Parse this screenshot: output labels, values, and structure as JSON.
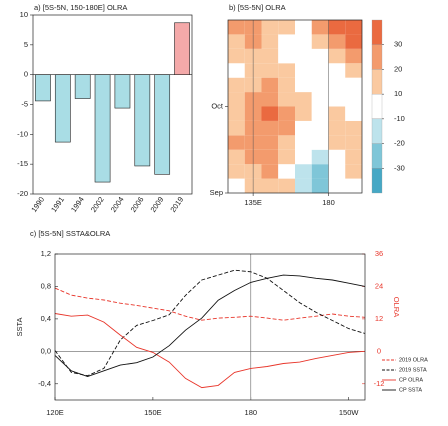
{
  "chart_data": [
    {
      "type": "bar",
      "title": "a) [5S-5N, 150-180E] OLRA",
      "categories": [
        "1990",
        "1991",
        "1994",
        "2002",
        "2004",
        "2006",
        "2009",
        "2019"
      ],
      "values": [
        -4.4,
        -11.3,
        -4,
        -18,
        -5.6,
        -15.3,
        -16.7,
        8.7
      ],
      "colors": [
        "#a9dde5",
        "#a9dde5",
        "#a9dde5",
        "#a9dde5",
        "#a9dde5",
        "#a9dde5",
        "#a9dde5",
        "#f4a9a9"
      ],
      "ylim": [
        -20,
        10
      ],
      "yticks": [
        -20,
        -15,
        -10,
        -5,
        0,
        5,
        10
      ]
    },
    {
      "type": "heatmap",
      "title": "b) [5S-5N] OLRA",
      "x": [
        125,
        135,
        145,
        155,
        165,
        175,
        185,
        195
      ],
      "y": [
        2.5,
        7.5,
        12.5,
        17.5,
        22.5,
        27.5,
        32.5,
        37.5,
        42.5,
        47.5,
        52.5,
        57.5
      ],
      "values": [
        [
          5,
          10,
          15,
          10,
          -20,
          -30,
          -10,
          5
        ],
        [
          10,
          15,
          20,
          5,
          -15,
          -25,
          -5,
          10
        ],
        [
          15,
          20,
          25,
          10,
          -10,
          -15,
          5,
          10
        ],
        [
          20,
          25,
          20,
          15,
          0,
          -10,
          10,
          15
        ],
        [
          15,
          20,
          25,
          20,
          5,
          -5,
          15,
          10
        ],
        [
          10,
          25,
          30,
          20,
          10,
          0,
          10,
          5
        ],
        [
          15,
          20,
          25,
          15,
          10,
          5,
          0,
          -5
        ],
        [
          10,
          15,
          20,
          10,
          5,
          0,
          -5,
          0
        ],
        [
          5,
          10,
          15,
          10,
          0,
          -10,
          0,
          10
        ],
        [
          10,
          15,
          10,
          5,
          -5,
          0,
          10,
          20
        ],
        [
          15,
          20,
          10,
          5,
          0,
          15,
          25,
          30
        ],
        [
          20,
          25,
          15,
          10,
          5,
          20,
          30,
          30
        ]
      ],
      "xlim": [
        120,
        200
      ],
      "xticks": [
        {
          "value": 135,
          "label": "135E"
        },
        180
      ],
      "ylim": [
        0,
        60
      ],
      "yticks": [
        {
          "value": 0,
          "label": "Sep"
        },
        {
          "value": 30,
          "label": "Oct"
        }
      ],
      "colorbar_ticks": [
        30,
        20,
        10,
        -10,
        -20,
        -30
      ],
      "colorbar_colors": [
        "#ea6a40",
        "#f39b6d",
        "#fac9a0",
        "#ffffff",
        "#bde3ec",
        "#7fc6d8",
        "#46a8c5"
      ]
    },
    {
      "type": "line",
      "title": "c) [5S-5N] SSTA&OLRA",
      "y_label": "SSTA",
      "y2_label": "OLRA",
      "x": [
        120,
        125,
        130,
        135,
        140,
        145,
        150,
        155,
        160,
        165,
        170,
        175,
        180,
        185,
        190,
        195,
        200,
        205,
        210,
        215
      ],
      "series": [
        {
          "name": "2019 OLRA",
          "color": "#e8352a",
          "dash": true,
          "axis": "y2",
          "values": [
            23.4,
            20.8,
            19.7,
            19,
            17.8,
            17,
            16,
            15,
            13,
            11.5,
            12.3,
            12.6,
            13,
            12.3,
            11.5,
            12.3,
            13,
            13.8,
            13,
            12.6
          ]
        },
        {
          "name": "2019 SSTA",
          "color": "#111111",
          "dash": true,
          "values": [
            0.01,
            -0.26,
            -0.3,
            -0.21,
            0.14,
            0.32,
            0.38,
            0.45,
            0.69,
            0.88,
            0.94,
            1.0,
            0.98,
            0.9,
            0.75,
            0.6,
            0.48,
            0.38,
            0.28,
            0.22
          ]
        },
        {
          "name": "CP OLRA",
          "color": "#e8352a",
          "dash": false,
          "axis": "y2",
          "values": [
            14,
            13,
            13.4,
            10.8,
            6,
            1.5,
            -0.4,
            -4,
            -10,
            -13.4,
            -12.6,
            -7.8,
            -6.3,
            -5.6,
            -4.5,
            -4,
            -2.6,
            -1.5,
            -0.4,
            0
          ]
        },
        {
          "name": "CP SSTA",
          "color": "#111111",
          "dash": false,
          "values": [
            -0.05,
            -0.24,
            -0.31,
            -0.24,
            -0.17,
            -0.14,
            -0.07,
            0.07,
            0.26,
            0.41,
            0.63,
            0.75,
            0.85,
            0.9,
            0.94,
            0.93,
            0.9,
            0.88,
            0.84,
            0.8
          ]
        }
      ],
      "xlim": [
        120,
        215
      ],
      "xticks": [
        {
          "value": 120,
          "label": "120E"
        },
        {
          "value": 150,
          "label": "150E"
        },
        180,
        {
          "value": 210,
          "label": "150W"
        }
      ],
      "vline": 180,
      "ylim": [
        -0.6,
        1.2
      ],
      "yticks": [
        {
          "value": -0.4,
          "label": "-0,4"
        },
        {
          "value": 0,
          "label": "0,0"
        },
        {
          "value": 0.4,
          "label": "0,4"
        },
        {
          "value": 0.8,
          "label": "0,8"
        },
        {
          "value": 1.2,
          "label": "1,2"
        }
      ],
      "y2lim": [
        -18,
        36
      ],
      "y2ticks": [
        -12,
        0,
        12,
        24,
        36
      ],
      "y2_color": "#e8352a"
    }
  ]
}
